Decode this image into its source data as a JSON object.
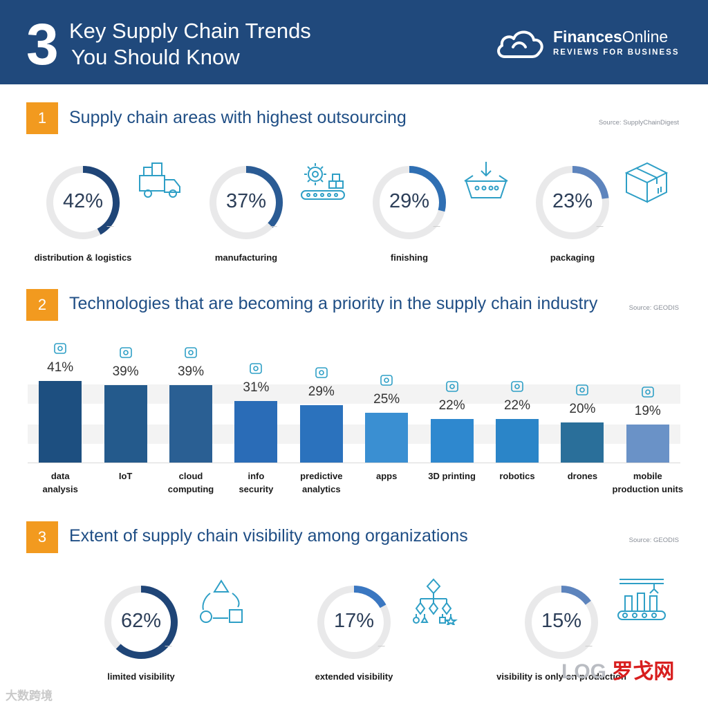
{
  "header": {
    "number": "3",
    "title_line1": "Key Supply Chain Trends",
    "title_line2": "You Should Know",
    "brand_name_bold": "Finances",
    "brand_name_rest": "Online",
    "brand_sub": "REVIEWS FOR BUSINESS"
  },
  "colors": {
    "header_bg": "#20497c",
    "accent_orange": "#f29a1f",
    "ring_bg": "#e9e9ea",
    "ring_fill": "#20497c"
  },
  "sections": [
    {
      "num": "1",
      "title": "Supply chain areas with highest outsourcing",
      "source": "Source:  SupplyChainDigest"
    },
    {
      "num": "2",
      "title": "Technologies that are becoming a priority in the supply chain industry",
      "source": "Source: GEODIS"
    },
    {
      "num": "3",
      "title": "Extent of supply chain visibility among organizations",
      "source": "Source: GEODIS"
    }
  ],
  "chart_data": [
    {
      "type": "pie",
      "title": "Supply chain areas with highest outsourcing",
      "categories": [
        "distribution & logistics",
        "manufacturing",
        "finishing",
        "packaging"
      ],
      "values": [
        42,
        37,
        29,
        23
      ],
      "labels": [
        "42%",
        "37%",
        "29%",
        "23%"
      ],
      "icons": [
        "truck-icon",
        "gear-conveyor-icon",
        "basket-icon",
        "box-icon"
      ]
    },
    {
      "type": "bar",
      "title": "Technologies that are becoming a priority in the supply chain industry",
      "categories": [
        "data analysis",
        "IoT",
        "cloud computing",
        "info security",
        "predictive analytics",
        "apps",
        "3D printing",
        "robotics",
        "drones",
        "mobile production units"
      ],
      "label_lines": [
        [
          "data",
          "analysis"
        ],
        [
          "IoT"
        ],
        [
          "cloud",
          "computing"
        ],
        [
          "info",
          "security"
        ],
        [
          "predictive",
          "analytics"
        ],
        [
          "apps"
        ],
        [
          "3D printing"
        ],
        [
          "robotics"
        ],
        [
          "drones"
        ],
        [
          "mobile",
          "production units"
        ]
      ],
      "values": [
        41,
        39,
        39,
        31,
        29,
        25,
        22,
        22,
        20,
        19
      ],
      "value_labels": [
        "41%",
        "39%",
        "39%",
        "31%",
        "29%",
        "25%",
        "22%",
        "22%",
        "20%",
        "19%"
      ],
      "colors": [
        "#1d4f80",
        "#245a8c",
        "#2a5f93",
        "#2a6cb7",
        "#2b72bd",
        "#3a8fd2",
        "#2e88cf",
        "#2b85c8",
        "#2a6f9a",
        "#6a92c7"
      ],
      "ylim": [
        0,
        45
      ]
    },
    {
      "type": "pie",
      "title": "Extent of supply chain visibility among organizations",
      "categories": [
        "limited visibility",
        "extended visibility",
        "visibility is only on production"
      ],
      "values": [
        62,
        17,
        15
      ],
      "labels": [
        "62%",
        "17%",
        "15%"
      ],
      "icons": [
        "cycle-shapes-icon",
        "tree-diagram-icon",
        "production-line-icon"
      ]
    }
  ],
  "watermarks": {
    "left": "大数跨境",
    "right_log": "LOG",
    "right_cn": "罗戈网"
  }
}
